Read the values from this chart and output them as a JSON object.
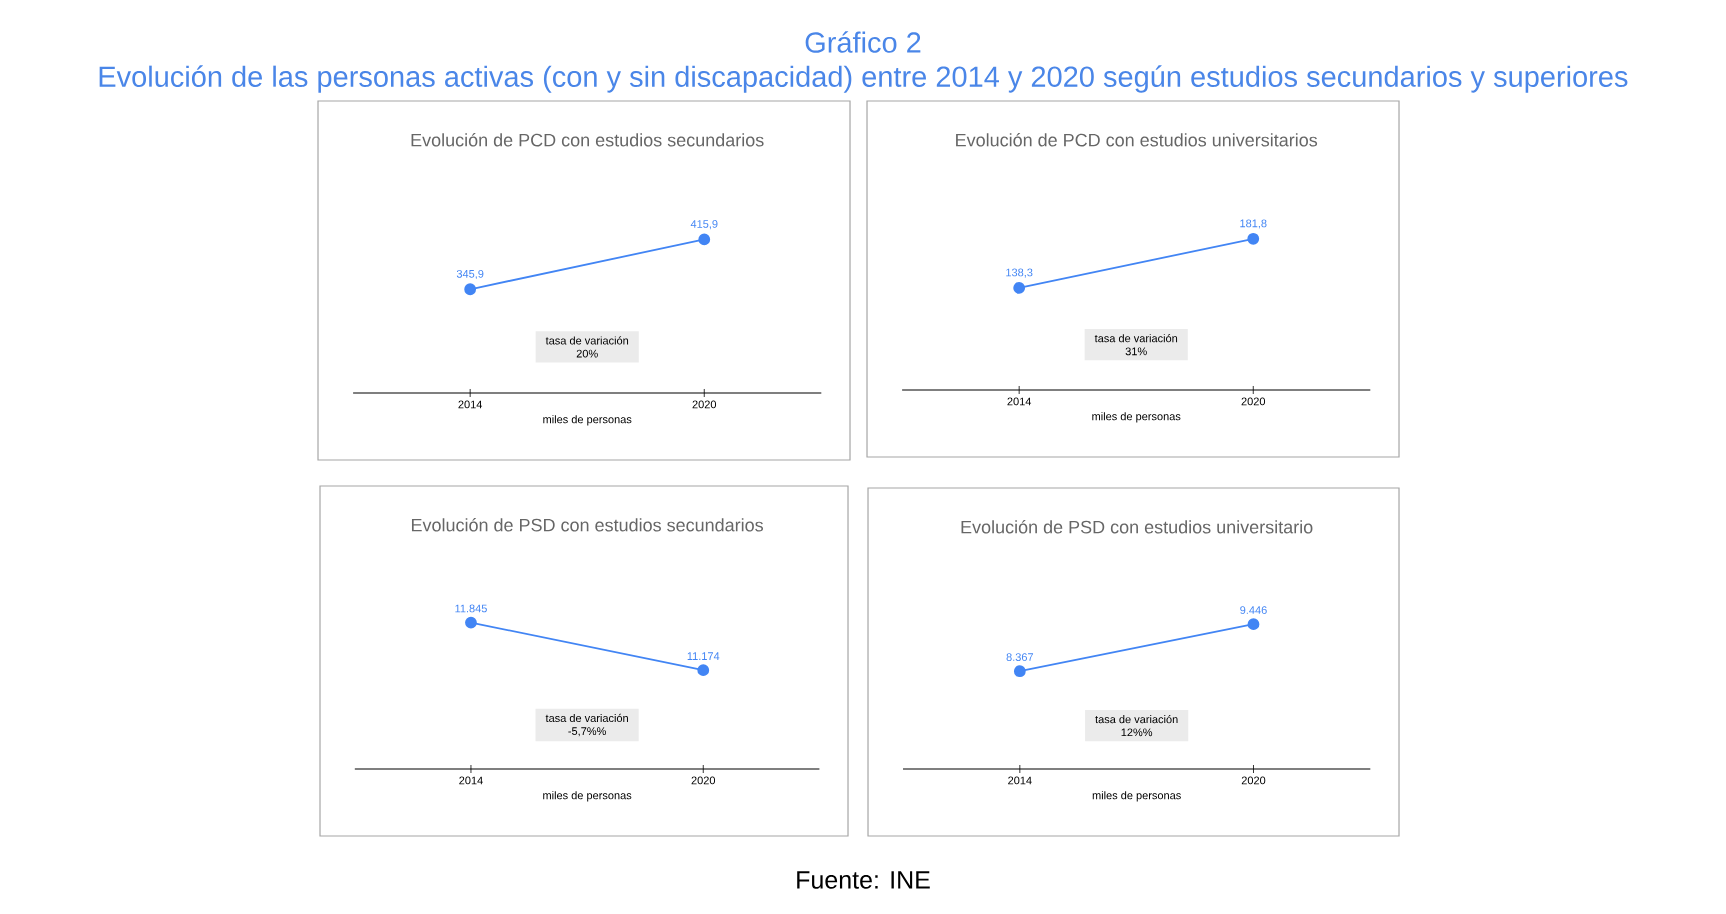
{
  "chart_data": [
    {
      "type": "other",
      "title": "Gráfico 2",
      "subtitle": "Evolución de las personas activas (con y sin discapacidad) entre 2014 y 2020 según estudios secundarios y superiores",
      "annotations": [
        "Fuente: INE"
      ]
    },
    {
      "type": "line",
      "title": "Evolución de PCD con estudios  secundarios",
      "xlabel": "miles de personas",
      "categories": [
        "2014",
        "2020"
      ],
      "values": [
        345.9,
        415.9
      ],
      "value_labels": [
        "345,9",
        "415,9"
      ],
      "color": "#4285f4",
      "marker": "circle",
      "annotations": [
        "tasa de variación",
        "20%"
      ]
    },
    {
      "type": "line",
      "title": "Evolución de PCD con estudios universitarios",
      "xlabel": "miles de personas",
      "categories": [
        "2014",
        "2020"
      ],
      "values": [
        138.3,
        181.8
      ],
      "value_labels": [
        "138,3",
        "181,8"
      ],
      "color": "#4285f4",
      "marker": "circle",
      "annotations": [
        "tasa de variación",
        "31%"
      ]
    },
    {
      "type": "line",
      "title": "Evolución de PSD con estudios  secundarios",
      "xlabel": "miles de personas",
      "categories": [
        "2014",
        "2020"
      ],
      "values": [
        11845,
        11174
      ],
      "value_labels": [
        "11.845",
        "11.174"
      ],
      "color": "#4285f4",
      "marker": "circle",
      "annotations": [
        "tasa de variación",
        "-5,7%%"
      ]
    },
    {
      "type": "line",
      "title": "Evolución de PSD con estudios  universitario",
      "xlabel": "miles de personas",
      "categories": [
        "2014",
        "2020"
      ],
      "values": [
        8367,
        9446
      ],
      "value_labels": [
        "8.367",
        "9.446"
      ],
      "color": "#4285f4",
      "marker": "circle",
      "annotations": [
        "tasa de variación",
        "12%%"
      ]
    }
  ]
}
